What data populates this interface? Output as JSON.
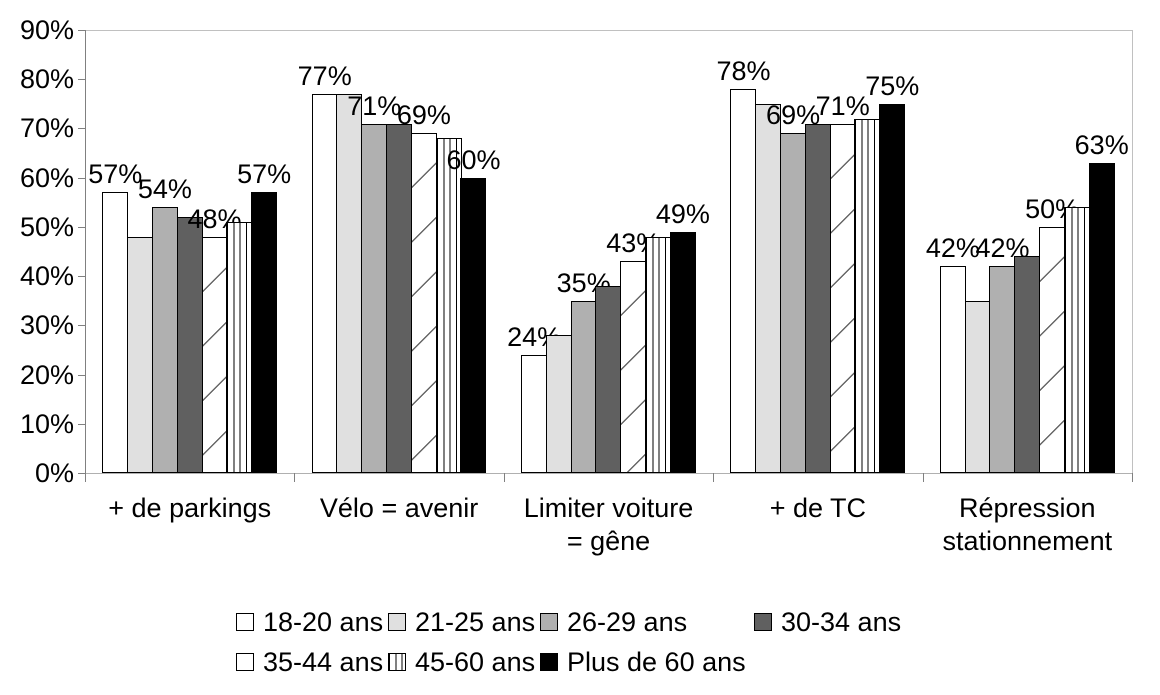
{
  "chart_data": {
    "type": "bar",
    "title": "",
    "xlabel": "",
    "ylabel": "",
    "categories": [
      "+ de parkings",
      "Vélo = avenir",
      "Limiter voiture\n= gêne",
      "+ de TC",
      "Répression\nstationnement"
    ],
    "series": [
      {
        "name": "18-20 ans",
        "pattern": "white",
        "values": [
          57,
          77,
          24,
          78,
          42
        ]
      },
      {
        "name": "21-25 ans",
        "pattern": "lightgray",
        "values": [
          48,
          77,
          28,
          75,
          35
        ]
      },
      {
        "name": "26-29 ans",
        "pattern": "midgray",
        "values": [
          54,
          71,
          35,
          69,
          42
        ]
      },
      {
        "name": "30-34 ans",
        "pattern": "darkgray",
        "values": [
          52,
          71,
          38,
          71,
          44
        ]
      },
      {
        "name": "35-44 ans",
        "pattern": "diagonal-hatch",
        "values": [
          48,
          69,
          43,
          71,
          50
        ]
      },
      {
        "name": "45-60 ans",
        "pattern": "vertical-stripes",
        "values": [
          51,
          68,
          48,
          72,
          54
        ]
      },
      {
        "name": "Plus de 60 ans",
        "pattern": "black",
        "values": [
          57,
          60,
          49,
          75,
          63
        ]
      }
    ],
    "data_labels": {
      "labeled_series": [
        0,
        2,
        4,
        6
      ],
      "suffix": "%"
    },
    "y_axis": {
      "min": 0,
      "max": 90,
      "step": 10,
      "tick_labels": [
        "0%",
        "10%",
        "20%",
        "30%",
        "40%",
        "50%",
        "60%",
        "70%",
        "80%",
        "90%"
      ]
    },
    "grid": false,
    "legend": {
      "position": "bottom",
      "rows": [
        [
          0,
          1,
          2,
          3
        ],
        [
          4,
          5,
          6
        ]
      ]
    },
    "colors": {
      "white": "#ffffff",
      "lightgray": "#e0e0e0",
      "midgray": "#b0b0b0",
      "darkgray": "#606060",
      "black": "#000000",
      "hatch_line": "#666666",
      "bar_border": "#000000",
      "axis": "#808080",
      "frame": "#c0c0c0",
      "text": "#000000",
      "background": "#ffffff"
    }
  }
}
